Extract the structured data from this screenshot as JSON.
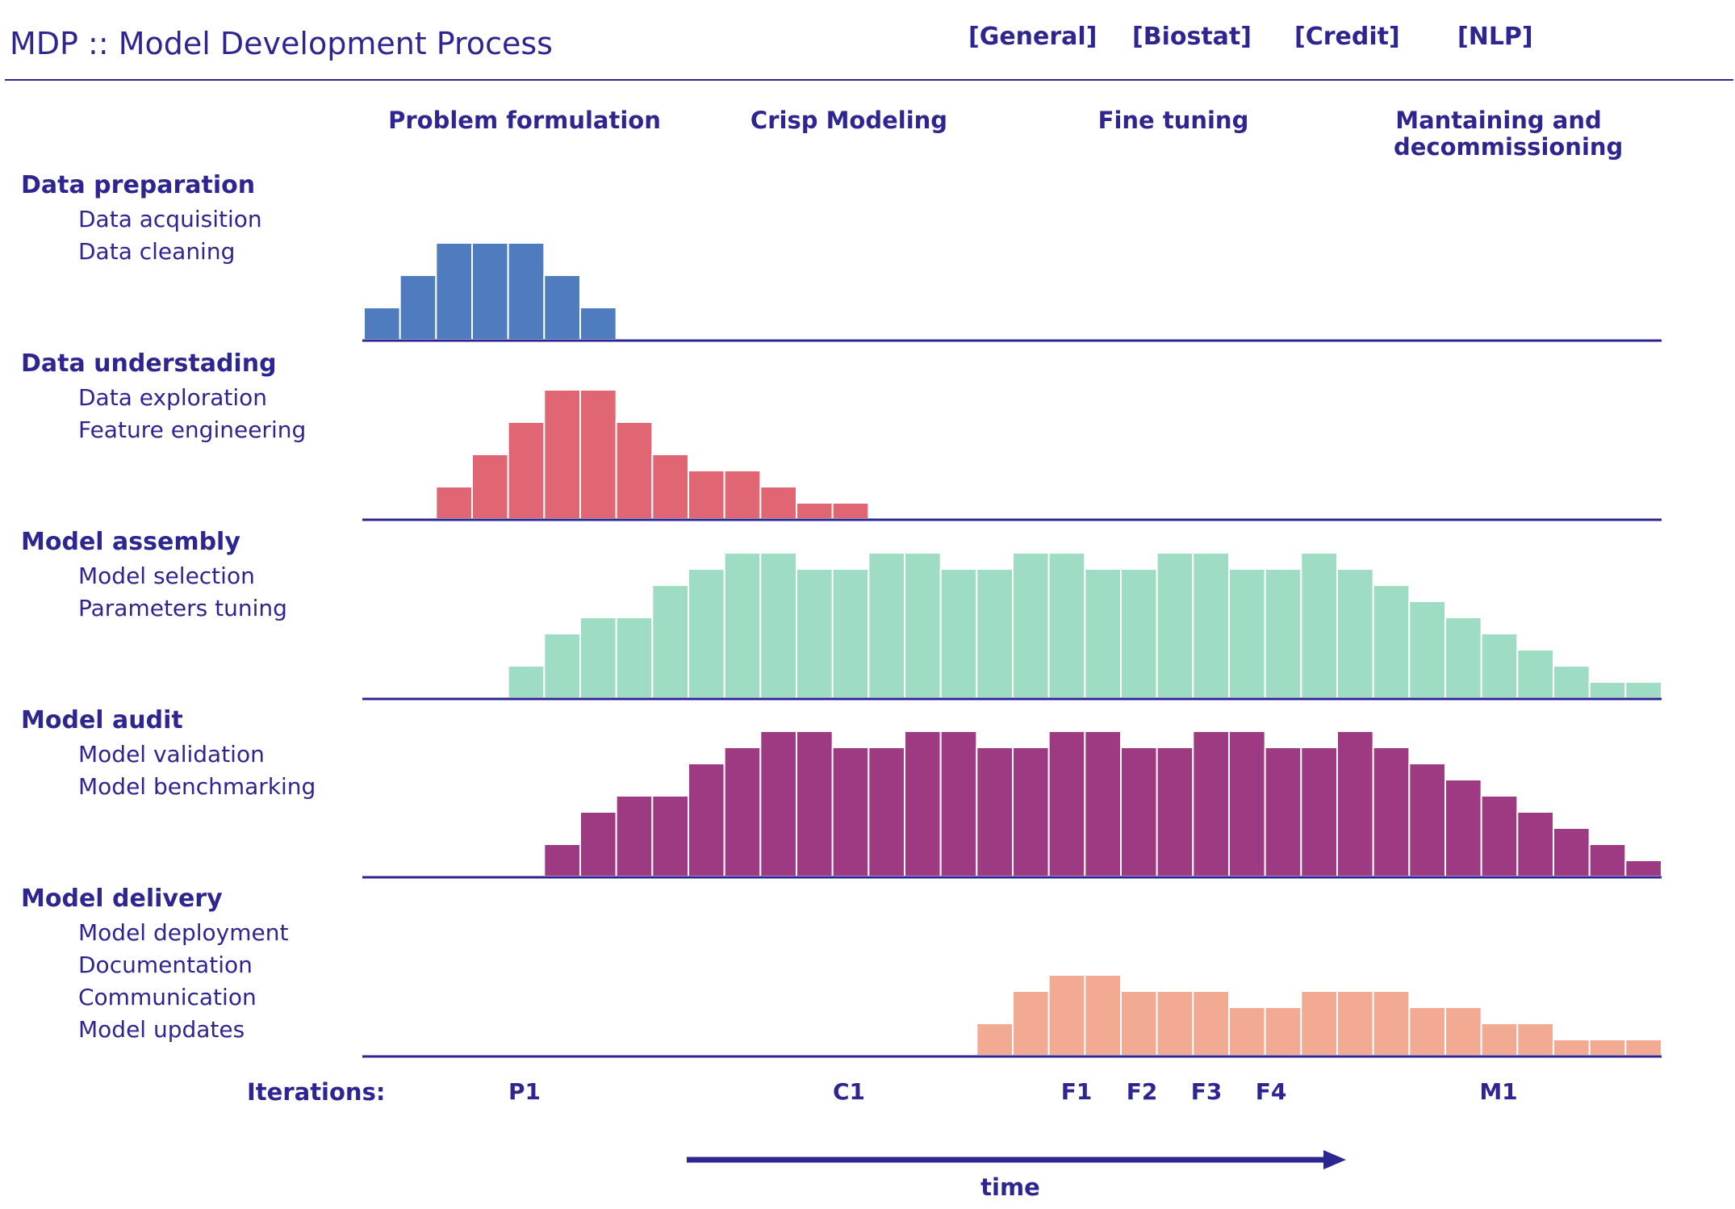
{
  "header": {
    "title": "MDP :: Model Development Process",
    "tags": [
      "[General]",
      "[Biostat]",
      "[Credit]",
      "[NLP]"
    ]
  },
  "phases": [
    "Problem formulation",
    "Crisp Modeling",
    "Fine tuning",
    "Mantaining and decommissioning"
  ],
  "sections": [
    {
      "title": "Data preparation",
      "items": [
        "Data acquisition",
        "Data cleaning"
      ]
    },
    {
      "title": "Data understading",
      "items": [
        "Data exploration",
        "Feature engineering"
      ]
    },
    {
      "title": "Model assembly",
      "items": [
        "Model selection",
        "Parameters tuning"
      ]
    },
    {
      "title": "Model audit",
      "items": [
        "Model validation",
        "Model benchmarking"
      ]
    },
    {
      "title": "Model delivery",
      "items": [
        "Model deployment",
        "Documentation",
        "Communication",
        "Model updates"
      ]
    }
  ],
  "iterations": {
    "label": "Iterations:",
    "marks": [
      "P1",
      "C1",
      "F1",
      "F2",
      "F3",
      "F4",
      "M1"
    ]
  },
  "time_label": "time",
  "colors": {
    "text": "#2e2690",
    "axis": "#2e2690",
    "series": [
      "#4f7bbf",
      "#e06673",
      "#9edcc3",
      "#9e3a82",
      "#f3aa93"
    ]
  },
  "chart_data": {
    "type": "bar",
    "x": [
      1,
      2,
      3,
      4,
      5,
      6,
      7,
      8,
      9,
      10,
      11,
      12,
      13,
      14,
      15,
      16,
      17,
      18,
      19,
      20,
      21,
      22,
      23,
      24,
      25,
      26,
      27,
      28,
      29,
      30,
      31,
      32,
      33,
      34,
      35,
      36
    ],
    "series": [
      {
        "name": "Data preparation",
        "values": [
          1,
          2,
          3,
          3,
          3,
          2,
          1,
          0,
          0,
          0,
          0,
          0,
          0,
          0,
          0,
          0,
          0,
          0,
          0,
          0,
          0,
          0,
          0,
          0,
          0,
          0,
          0,
          0,
          0,
          0,
          0,
          0,
          0,
          0,
          0,
          0
        ]
      },
      {
        "name": "Data understading",
        "values": [
          0,
          0,
          1,
          2,
          3,
          4,
          4,
          3,
          2,
          1.5,
          1.5,
          1,
          0.5,
          0.5,
          0,
          0,
          0,
          0,
          0,
          0,
          0,
          0,
          0,
          0,
          0,
          0,
          0,
          0,
          0,
          0,
          0,
          0,
          0,
          0,
          0,
          0
        ]
      },
      {
        "name": "Model assembly",
        "values": [
          0,
          0,
          0,
          0,
          1,
          2,
          2.5,
          2.5,
          3.5,
          4,
          4.5,
          4.5,
          4,
          4,
          4.5,
          4.5,
          4,
          4,
          4.5,
          4.5,
          4,
          4,
          4.5,
          4.5,
          4,
          4,
          4.5,
          4,
          3.5,
          3,
          2.5,
          2,
          1.5,
          1,
          0.5,
          0.5
        ]
      },
      {
        "name": "Model audit",
        "values": [
          0,
          0,
          0,
          0,
          0,
          1,
          2,
          2.5,
          2.5,
          3.5,
          4,
          4.5,
          4.5,
          4,
          4,
          4.5,
          4.5,
          4,
          4,
          4.5,
          4.5,
          4,
          4,
          4.5,
          4.5,
          4,
          4,
          4.5,
          4,
          3.5,
          3,
          2.5,
          2,
          1.5,
          1,
          0.5
        ]
      },
      {
        "name": "Model delivery",
        "values": [
          0,
          0,
          0,
          0,
          0,
          0,
          0,
          0,
          0,
          0,
          0,
          0,
          0,
          0,
          0,
          0,
          0,
          1,
          2,
          2.5,
          2.5,
          2,
          2,
          2,
          1.5,
          1.5,
          2,
          2,
          2,
          1.5,
          1.5,
          1,
          1,
          0.5,
          0.5,
          0.5
        ]
      }
    ],
    "ylim": [
      0,
      4.5
    ]
  }
}
